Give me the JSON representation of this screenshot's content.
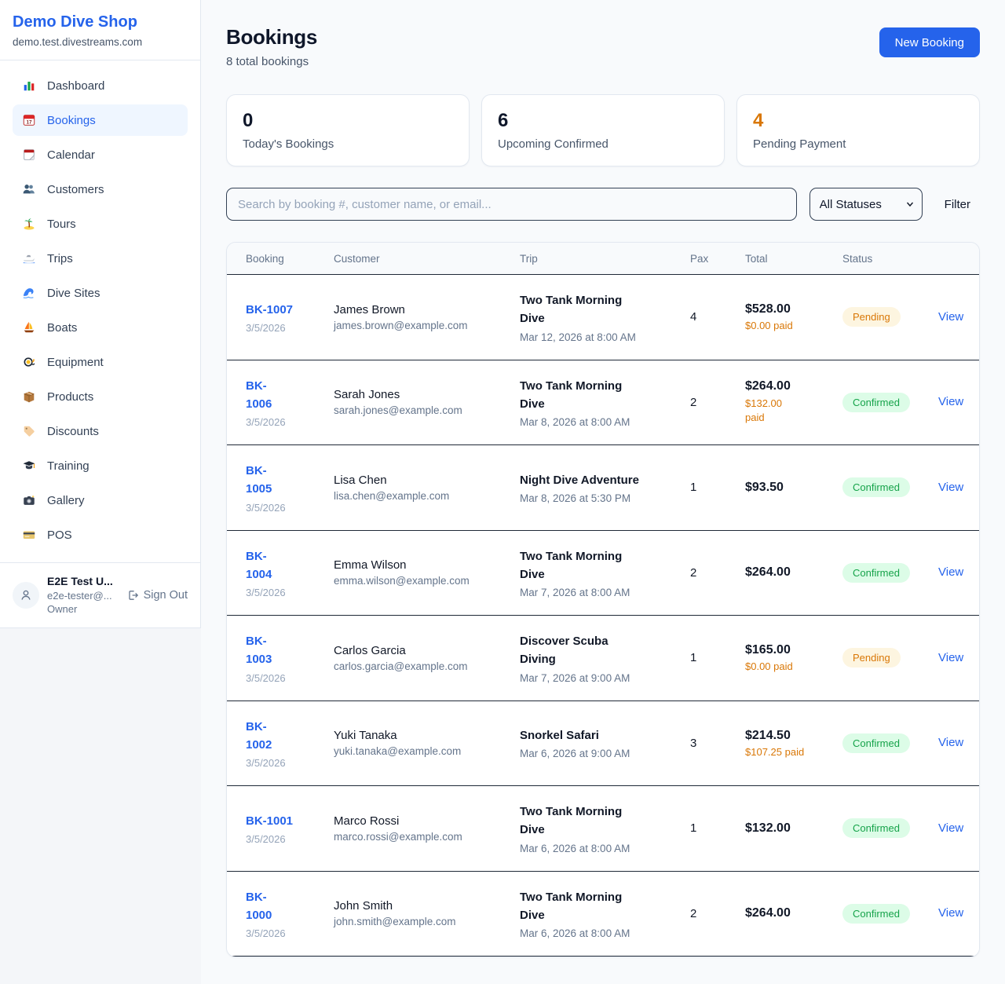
{
  "sidebar": {
    "brand": {
      "name": "Demo Dive Shop",
      "domain": "demo.test.divestreams.com"
    },
    "nav": [
      {
        "id": "dashboard",
        "label": "Dashboard",
        "icon": "dashboard-icon",
        "active": false
      },
      {
        "id": "bookings",
        "label": "Bookings",
        "icon": "bookings-icon",
        "active": true
      },
      {
        "id": "calendar",
        "label": "Calendar",
        "icon": "calendar-icon",
        "active": false
      },
      {
        "id": "customers",
        "label": "Customers",
        "icon": "customers-icon",
        "active": false
      },
      {
        "id": "tours",
        "label": "Tours",
        "icon": "tours-icon",
        "active": false
      },
      {
        "id": "trips",
        "label": "Trips",
        "icon": "trips-icon",
        "active": false
      },
      {
        "id": "dive-sites",
        "label": "Dive Sites",
        "icon": "dive-sites-icon",
        "active": false
      },
      {
        "id": "boats",
        "label": "Boats",
        "icon": "boats-icon",
        "active": false
      },
      {
        "id": "equipment",
        "label": "Equipment",
        "icon": "equipment-icon",
        "active": false
      },
      {
        "id": "products",
        "label": "Products",
        "icon": "products-icon",
        "active": false
      },
      {
        "id": "discounts",
        "label": "Discounts",
        "icon": "discounts-icon",
        "active": false
      },
      {
        "id": "training",
        "label": "Training",
        "icon": "training-icon",
        "active": false
      },
      {
        "id": "gallery",
        "label": "Gallery",
        "icon": "gallery-icon",
        "active": false
      },
      {
        "id": "pos",
        "label": "POS",
        "icon": "pos-icon",
        "active": false
      }
    ],
    "user": {
      "name": "E2E Test U...",
      "email": "e2e-tester@...",
      "role": "Owner",
      "sign_out_label": "Sign Out"
    }
  },
  "header": {
    "title": "Bookings",
    "subtitle": "8 total bookings",
    "new_booking_label": "New Booking"
  },
  "stats": [
    {
      "value": "0",
      "label": "Today's Bookings",
      "accent": "dark"
    },
    {
      "value": "6",
      "label": "Upcoming Confirmed",
      "accent": "dark"
    },
    {
      "value": "4",
      "label": "Pending Payment",
      "accent": "orange"
    }
  ],
  "filters": {
    "search_placeholder": "Search by booking #, customer name, or email...",
    "status_selected": "All Statuses",
    "filter_label": "Filter"
  },
  "table": {
    "columns": [
      "Booking",
      "Customer",
      "Trip",
      "Pax",
      "Total",
      "Status"
    ],
    "rows": [
      {
        "booking": "BK-1007",
        "date": "3/5/2026",
        "customer": "James Brown",
        "email": "james.brown@example.com",
        "trip": "Two Tank Morning Dive",
        "trip_time": "Mar 12, 2026 at 8:00 AM",
        "pax": "4",
        "total": "$528.00",
        "paid": "$0.00 paid",
        "status": "Pending",
        "view": "View",
        "booking_two_line": false,
        "paid_two_line": false
      },
      {
        "booking": "BK-1006",
        "date": "3/5/2026",
        "customer": "Sarah Jones",
        "email": "sarah.jones@example.com",
        "trip": "Two Tank Morning Dive",
        "trip_time": "Mar 8, 2026 at 8:00 AM",
        "pax": "2",
        "total": "$264.00",
        "paid": "$132.00 paid",
        "status": "Confirmed",
        "view": "View",
        "booking_two_line": true,
        "paid_two_line": true
      },
      {
        "booking": "BK-1005",
        "date": "3/5/2026",
        "customer": "Lisa Chen",
        "email": "lisa.chen@example.com",
        "trip": "Night Dive Adventure",
        "trip_time": "Mar 8, 2026 at 5:30 PM",
        "pax": "1",
        "total": "$93.50",
        "paid": null,
        "status": "Confirmed",
        "view": "View",
        "booking_two_line": true,
        "paid_two_line": false
      },
      {
        "booking": "BK-1004",
        "date": "3/5/2026",
        "customer": "Emma Wilson",
        "email": "emma.wilson@example.com",
        "trip": "Two Tank Morning Dive",
        "trip_time": "Mar 7, 2026 at 8:00 AM",
        "pax": "2",
        "total": "$264.00",
        "paid": null,
        "status": "Confirmed",
        "view": "View",
        "booking_two_line": true,
        "paid_two_line": false
      },
      {
        "booking": "BK-1003",
        "date": "3/5/2026",
        "customer": "Carlos Garcia",
        "email": "carlos.garcia@example.com",
        "trip": "Discover Scuba Diving",
        "trip_time": "Mar 7, 2026 at 9:00 AM",
        "pax": "1",
        "total": "$165.00",
        "paid": "$0.00 paid",
        "status": "Pending",
        "view": "View",
        "booking_two_line": true,
        "paid_two_line": false
      },
      {
        "booking": "BK-1002",
        "date": "3/5/2026",
        "customer": "Yuki Tanaka",
        "email": "yuki.tanaka@example.com",
        "trip": "Snorkel Safari",
        "trip_time": "Mar 6, 2026 at 9:00 AM",
        "pax": "3",
        "total": "$214.50",
        "paid": "$107.25 paid",
        "status": "Confirmed",
        "view": "View",
        "booking_two_line": true,
        "paid_two_line": false
      },
      {
        "booking": "BK-1001",
        "date": "3/5/2026",
        "customer": "Marco Rossi",
        "email": "marco.rossi@example.com",
        "trip": "Two Tank Morning Dive",
        "trip_time": "Mar 6, 2026 at 8:00 AM",
        "pax": "1",
        "total": "$132.00",
        "paid": null,
        "status": "Confirmed",
        "view": "View",
        "booking_two_line": false,
        "paid_two_line": false
      },
      {
        "booking": "BK-1000",
        "date": "3/5/2026",
        "customer": "John Smith",
        "email": "john.smith@example.com",
        "trip": "Two Tank Morning Dive",
        "trip_time": "Mar 6, 2026 at 8:00 AM",
        "pax": "2",
        "total": "$264.00",
        "paid": null,
        "status": "Confirmed",
        "view": "View",
        "booking_two_line": true,
        "paid_two_line": false
      }
    ]
  },
  "colors": {
    "primary": "#2563eb",
    "pending_text": "#d97706",
    "pending_bg": "#fdf5e0",
    "confirmed_text": "#16a34a",
    "confirmed_bg": "#dcfce7",
    "paid_text": "#d97706"
  }
}
